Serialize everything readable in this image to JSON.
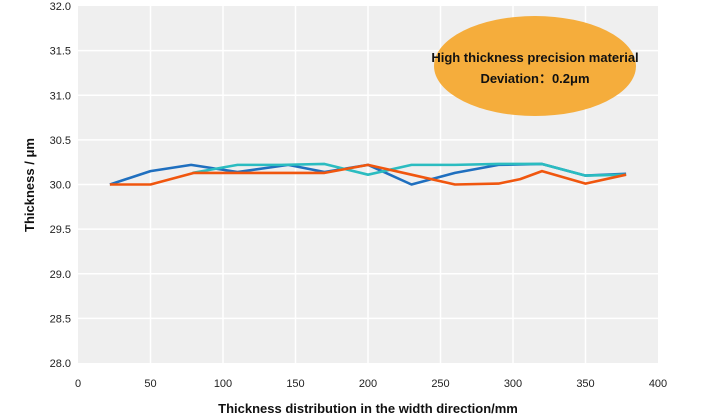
{
  "chart_data": {
    "type": "line",
    "xlabel": "Thickness distribution in the width direction/mm",
    "ylabel": "Thickness / μm",
    "xlim": [
      0,
      400
    ],
    "ylim": [
      28.0,
      32.0
    ],
    "xticks": [
      "0",
      "50",
      "100",
      "150",
      "200",
      "250",
      "300",
      "350",
      "400"
    ],
    "yticks": [
      "28.0",
      "28.5",
      "29.0",
      "29.5",
      "30.0",
      "30.5",
      "31.0",
      "31.5",
      "32.0"
    ],
    "grid": true,
    "annotation": {
      "line1": "High thickness precision material",
      "line2": "Deviation：0.2μm",
      "color": "#f5ad3c"
    },
    "series": [
      {
        "color": "#1f6fbf",
        "x": [
          22,
          50,
          78,
          110,
          145,
          170,
          200,
          230,
          260,
          290,
          320,
          350,
          378
        ],
        "y": [
          30.0,
          30.15,
          30.22,
          30.14,
          30.22,
          30.14,
          30.22,
          30.0,
          30.13,
          30.22,
          30.23,
          30.1,
          30.12
        ]
      },
      {
        "color": "#2bbcc0",
        "x": [
          79,
          110,
          140,
          170,
          200,
          230,
          260,
          290,
          320,
          350,
          378
        ],
        "y": [
          30.13,
          30.22,
          30.22,
          30.23,
          30.11,
          30.22,
          30.22,
          30.23,
          30.23,
          30.1,
          30.11
        ]
      },
      {
        "color": "#f0560e",
        "x": [
          22,
          50,
          80,
          110,
          140,
          170,
          200,
          230,
          260,
          290,
          305,
          320,
          350,
          378
        ],
        "y": [
          30.0,
          30.0,
          30.13,
          30.13,
          30.13,
          30.13,
          30.22,
          30.11,
          30.0,
          30.01,
          30.06,
          30.15,
          30.01,
          30.11
        ]
      }
    ]
  }
}
